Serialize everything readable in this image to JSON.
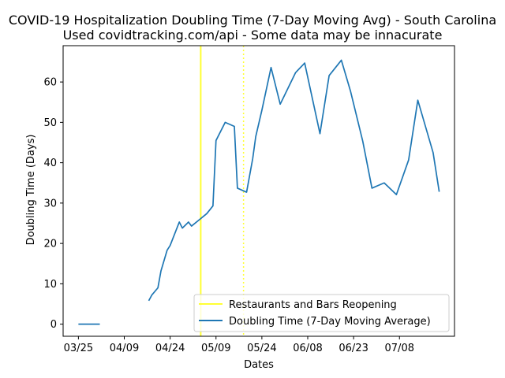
{
  "chart_data": {
    "type": "line",
    "title": "COVID-19 Hospitalization Doubling Time (7-Day Moving Avg) - South Carolina",
    "subtitle": "Used covidtracking.com/api - Some data may be innacurate",
    "xlabel": "Dates",
    "ylabel": "Doubling Time (Days)",
    "x_type": "date",
    "xlim": [
      "2020-03-20",
      "2020-07-26"
    ],
    "ylim": [
      -3,
      69
    ],
    "x_ticks": [
      {
        "date": "2020-03-25",
        "label": "03/25"
      },
      {
        "date": "2020-04-09",
        "label": "04/09"
      },
      {
        "date": "2020-04-24",
        "label": "04/24"
      },
      {
        "date": "2020-05-09",
        "label": "05/09"
      },
      {
        "date": "2020-05-24",
        "label": "05/24"
      },
      {
        "date": "2020-06-08",
        "label": "06/08"
      },
      {
        "date": "2020-06-23",
        "label": "06/23"
      },
      {
        "date": "2020-07-08",
        "label": "07/08"
      }
    ],
    "y_ticks": [
      0,
      10,
      20,
      30,
      40,
      50,
      60
    ],
    "grid": false,
    "legend_position": "lower-right",
    "vlines": [
      {
        "name": "Restaurants and Bars Reopening",
        "date": "2020-05-04",
        "style": "solid",
        "color": "#ffff33"
      },
      {
        "name": "",
        "date": "2020-05-18",
        "style": "dotted",
        "color": "#ffff33"
      }
    ],
    "series": [
      {
        "name": "Doubling Time (7-Day Moving Average)",
        "color": "#1f77b4",
        "segments": [
          [
            {
              "x": "2020-03-25",
              "y": 0
            },
            {
              "x": "2020-03-26",
              "y": 0
            },
            {
              "x": "2020-03-27",
              "y": 0
            },
            {
              "x": "2020-03-28",
              "y": 0
            },
            {
              "x": "2020-03-29",
              "y": 0
            },
            {
              "x": "2020-03-30",
              "y": 0
            },
            {
              "x": "2020-03-31",
              "y": 0
            },
            {
              "x": "2020-04-01",
              "y": 0
            }
          ],
          [
            {
              "x": "2020-04-17",
              "y": 5.8
            },
            {
              "x": "2020-04-18",
              "y": 7.2
            },
            {
              "x": "2020-04-20",
              "y": 9.0
            },
            {
              "x": "2020-04-21",
              "y": 13.2
            },
            {
              "x": "2020-04-23",
              "y": 18.3
            },
            {
              "x": "2020-04-24",
              "y": 19.5
            },
            {
              "x": "2020-04-27",
              "y": 25.3
            },
            {
              "x": "2020-04-28",
              "y": 23.8
            },
            {
              "x": "2020-04-30",
              "y": 25.3
            },
            {
              "x": "2020-05-01",
              "y": 24.3
            },
            {
              "x": "2020-05-06",
              "y": 27.4
            },
            {
              "x": "2020-05-08",
              "y": 29.3
            },
            {
              "x": "2020-05-09",
              "y": 45.5
            },
            {
              "x": "2020-05-12",
              "y": 50.0
            },
            {
              "x": "2020-05-15",
              "y": 49.0
            },
            {
              "x": "2020-05-16",
              "y": 33.7
            },
            {
              "x": "2020-05-19",
              "y": 32.7
            },
            {
              "x": "2020-05-21",
              "y": 41.0
            },
            {
              "x": "2020-05-22",
              "y": 46.5
            },
            {
              "x": "2020-05-24",
              "y": 53.0
            },
            {
              "x": "2020-05-27",
              "y": 63.6
            },
            {
              "x": "2020-05-30",
              "y": 54.5
            },
            {
              "x": "2020-06-04",
              "y": 62.3
            },
            {
              "x": "2020-06-07",
              "y": 64.7
            },
            {
              "x": "2020-06-12",
              "y": 47.2
            },
            {
              "x": "2020-06-15",
              "y": 61.6
            },
            {
              "x": "2020-06-19",
              "y": 65.4
            },
            {
              "x": "2020-06-22",
              "y": 57.7
            },
            {
              "x": "2020-06-26",
              "y": 45.3
            },
            {
              "x": "2020-06-29",
              "y": 33.7
            },
            {
              "x": "2020-07-03",
              "y": 35.0
            },
            {
              "x": "2020-07-07",
              "y": 32.1
            },
            {
              "x": "2020-07-11",
              "y": 40.7
            },
            {
              "x": "2020-07-14",
              "y": 55.5
            },
            {
              "x": "2020-07-19",
              "y": 42.5
            },
            {
              "x": "2020-07-21",
              "y": 32.8
            }
          ]
        ]
      }
    ]
  }
}
